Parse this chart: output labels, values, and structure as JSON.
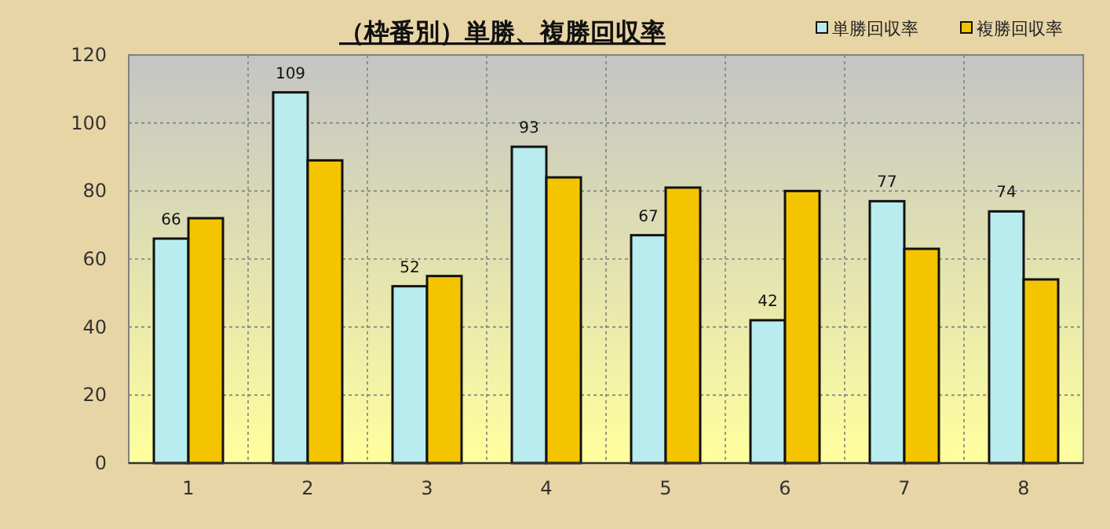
{
  "chart_data": {
    "type": "bar",
    "title": "（枠番別）単勝、複勝回収率",
    "categories": [
      "1",
      "2",
      "3",
      "4",
      "5",
      "6",
      "7",
      "8"
    ],
    "series": [
      {
        "name": "単勝回収率",
        "color": "#b8ecee",
        "values": [
          66,
          109,
          52,
          93,
          67,
          42,
          77,
          74
        ],
        "value_labels": [
          "66",
          "109",
          "52",
          "93",
          "67",
          "42",
          "77",
          "74"
        ]
      },
      {
        "name": "複勝回収率",
        "color": "#f5c400",
        "values": [
          72,
          89,
          55,
          84,
          81,
          80,
          63,
          54
        ]
      }
    ],
    "ylim": [
      0,
      120
    ],
    "yticks": [
      0,
      20,
      40,
      60,
      80,
      100,
      120
    ],
    "grid": true,
    "legend": "top right"
  }
}
